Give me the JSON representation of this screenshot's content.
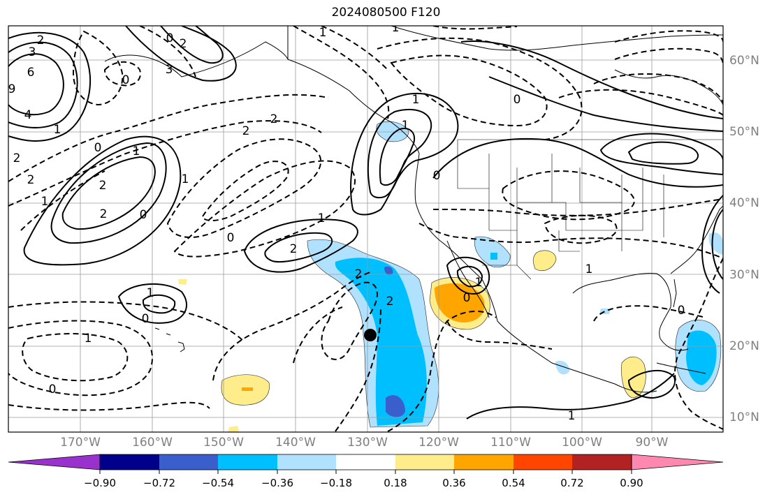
{
  "title": "2024080500 F120",
  "lon_labels": [
    "170°W",
    "160°W",
    "150°W",
    "140°W",
    "130°W",
    "120°W",
    "110°W",
    "100°W",
    "90°W"
  ],
  "lat_labels": [
    "60°N",
    "50°N",
    "40°N",
    "30°N",
    "20°N",
    "10°N"
  ],
  "colorbar": {
    "ticks": [
      "−0.90",
      "−0.72",
      "−0.54",
      "−0.36",
      "−0.18",
      "0.18",
      "0.36",
      "0.54",
      "0.72",
      "0.90"
    ],
    "colors": [
      "#9932cc",
      "#00008b",
      "#3a5fcd",
      "#00bfff",
      "#b0e2ff",
      "#ffffff",
      "#ffec8b",
      "#ffa500",
      "#ff4500",
      "#b22222",
      "#ff88b0"
    ]
  },
  "contour_labels": [
    "2",
    "3",
    "6",
    "4",
    "9",
    "1",
    "0",
    "2",
    "2",
    "2",
    "1",
    "2",
    "0",
    "1",
    "1",
    "0",
    "1",
    "2",
    "2",
    "1",
    "0",
    "2",
    "0",
    "1",
    "0",
    "3",
    "2",
    "0",
    "1",
    "1",
    "1",
    "0",
    "1",
    "0",
    "2",
    "2",
    "0",
    "1",
    "1",
    "1",
    "0"
  ]
}
